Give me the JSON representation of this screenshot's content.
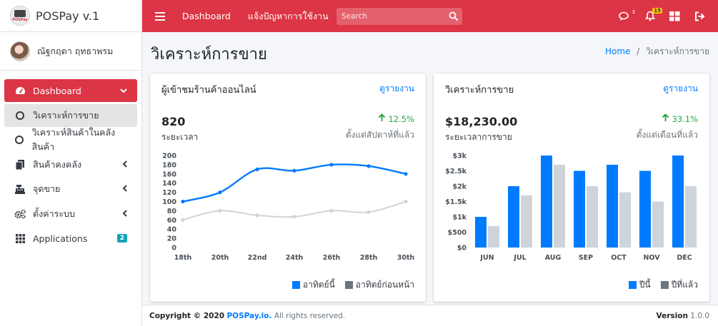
{
  "brand": {
    "name": "POSPay v.1",
    "logo_tag": "POSPay"
  },
  "user": {
    "name": "ณัฐกฤตา ฤทธาพรม"
  },
  "sidebar": {
    "items": [
      {
        "label": "Dashboard"
      },
      {
        "label": "วิเคราะห์การขาย"
      },
      {
        "label": "วิเคราะห์สินค้าในคลังสินค้า"
      },
      {
        "label": "สินค้าคงคลัง"
      },
      {
        "label": "จุดขาย"
      },
      {
        "label": "ตั้งค่าระบบ"
      },
      {
        "label": "Applications",
        "badge": "2"
      }
    ]
  },
  "topbar": {
    "links": [
      "Dashboard",
      "แจ้งปัญหาการใช้งาน"
    ],
    "search_placeholder": "Search",
    "messages_count": "3",
    "notifications_count": "15"
  },
  "page": {
    "title": "วิเคราะห์การขาย",
    "breadcrumb_home": "Home",
    "breadcrumb_sep": "/",
    "breadcrumb_current": "วิเคราะห์การขาย"
  },
  "visitors_card": {
    "title": "ผู้เข้าชมร้านค้าออนไลน์",
    "link": "ดูรายงาน",
    "value": "820",
    "value_label": "ระยะเวลา",
    "change": "12.5%",
    "change_label": "ตั้งแต่สัปดาห์ที่แล้ว"
  },
  "sales_card": {
    "title": "วิเคราะห์การขาย",
    "link": "ดูรายงาน",
    "value": "$18,230.00",
    "value_label": "ระยะเวลาการขาย",
    "change": "33.1%",
    "change_label": "ตั้งแต่เดือนที่แล้ว"
  },
  "footer": {
    "copyright": "Copyright © 2020",
    "brand_link": "POSPay.io.",
    "rights": "All rights reserved.",
    "version_label": "Version",
    "version": "1.0.0"
  },
  "chart_data": [
    {
      "type": "line",
      "x": [
        "18th",
        "20th",
        "22nd",
        "24th",
        "26th",
        "28th",
        "30th"
      ],
      "series": [
        {
          "name": "อาทิตย์นี้",
          "values": [
            100,
            120,
            170,
            167,
            180,
            177,
            160
          ],
          "color": "#007bff"
        },
        {
          "name": "อาทิตย์ก่อนหน้า",
          "values": [
            60,
            80,
            70,
            67,
            80,
            77,
            100
          ],
          "color": "#ced4da"
        }
      ],
      "y_ticks": [
        "0",
        "20",
        "40",
        "60",
        "80",
        "100",
        "120",
        "140",
        "160",
        "180",
        "200"
      ],
      "ylim": [
        0,
        200
      ],
      "legend": "bottom-right",
      "legend_colors": [
        "#007bff",
        "#6c757d"
      ]
    },
    {
      "type": "bar",
      "categories": [
        "JUN",
        "JUL",
        "AUG",
        "SEP",
        "OCT",
        "NOV",
        "DEC"
      ],
      "series": [
        {
          "name": "ปีนี้",
          "values": [
            1000,
            2000,
            3000,
            2500,
            2700,
            2500,
            3000
          ],
          "color": "#007bff"
        },
        {
          "name": "ปีที่แล้ว",
          "values": [
            700,
            1700,
            2700,
            2000,
            1800,
            1500,
            2000
          ],
          "color": "#ced4da"
        }
      ],
      "y_ticks": [
        "$0",
        "$500",
        "$1k",
        "$1.5k",
        "$2k",
        "$2.5k",
        "$3k"
      ],
      "ylim": [
        0,
        3000
      ],
      "legend": "bottom-right",
      "legend_colors": [
        "#007bff",
        "#6c757d"
      ]
    }
  ]
}
